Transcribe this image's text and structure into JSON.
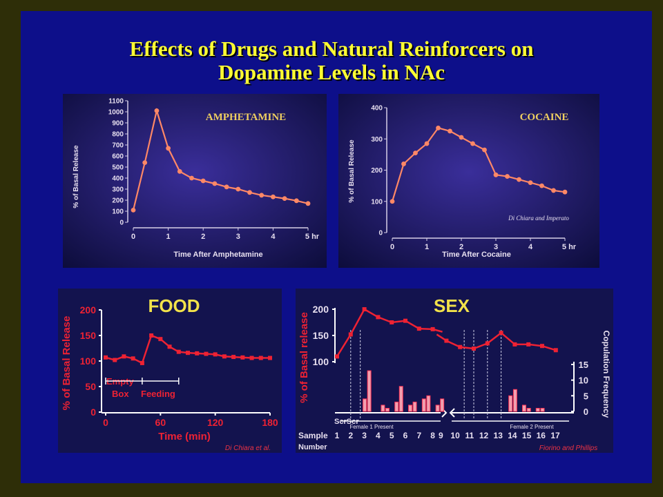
{
  "title": {
    "line1": "Effects of Drugs and Natural Reinforcers on",
    "line2": "Dopamine Levels in NAc"
  },
  "colors": {
    "slide_bg": "#0d0f8a",
    "title": "#ffff33",
    "panel_bg": "#12124f",
    "line": "#ff8866",
    "food_line": "#ee2233"
  },
  "chart_data": [
    {
      "type": "line",
      "title": "AMPHETAMINE",
      "xlabel": "Time After Amphetamine",
      "ylabel": "% of Basal Release",
      "x_ticks": [
        "0",
        "1",
        "2",
        "3",
        "4",
        "5 hr"
      ],
      "y_ticks": [
        "0",
        "100",
        "200",
        "300",
        "400",
        "500",
        "600",
        "700",
        "800",
        "900",
        "1000",
        "1100"
      ],
      "xlim": [
        0,
        5
      ],
      "ylim": [
        0,
        1100
      ],
      "series": [
        {
          "x": [
            0,
            0.33,
            0.67,
            1.0,
            1.33,
            1.67,
            2.0,
            2.33,
            2.67,
            3.0,
            3.33,
            3.67,
            4.0,
            4.33,
            4.67,
            5.0
          ],
          "y": [
            110,
            540,
            1010,
            670,
            460,
            400,
            375,
            350,
            320,
            300,
            270,
            245,
            230,
            215,
            195,
            170
          ]
        }
      ]
    },
    {
      "type": "line",
      "title": "COCAINE",
      "xlabel": "Time After Cocaine",
      "ylabel": "% of Basal Release",
      "annotation": "Di Chiara and Imperato",
      "x_ticks": [
        "0",
        "1",
        "2",
        "3",
        "4",
        "5 hr"
      ],
      "y_ticks": [
        "0",
        "100",
        "200",
        "300",
        "400"
      ],
      "xlim": [
        0,
        5
      ],
      "ylim": [
        0,
        400
      ],
      "series": [
        {
          "x": [
            0,
            0.33,
            0.67,
            1.0,
            1.33,
            1.67,
            2.0,
            2.33,
            2.67,
            3.0,
            3.33,
            3.67,
            4.0,
            4.33,
            4.67,
            5.0
          ],
          "y": [
            100,
            220,
            255,
            285,
            335,
            325,
            305,
            285,
            265,
            185,
            180,
            170,
            160,
            150,
            135,
            130
          ]
        }
      ]
    },
    {
      "type": "line",
      "title": "FOOD",
      "xlabel": "Time (min)",
      "ylabel": "% of Basal Release",
      "annotation": "Di Chiara et al.",
      "x_ticks": [
        "0",
        "60",
        "120",
        "180"
      ],
      "y_ticks": [
        "0",
        "50",
        "100",
        "150",
        "200"
      ],
      "xlim": [
        0,
        180
      ],
      "ylim": [
        0,
        200
      ],
      "labels": {
        "empty": "Empty",
        "box": "Box",
        "feeding": "Feeding"
      },
      "series": [
        {
          "x": [
            0,
            10,
            20,
            30,
            40,
            50,
            60,
            70,
            80,
            90,
            100,
            110,
            120,
            130,
            140,
            150,
            160,
            170,
            180
          ],
          "y": [
            107,
            102,
            109,
            105,
            96,
            150,
            143,
            128,
            118,
            116,
            115,
            114,
            113,
            109,
            108,
            107,
            106,
            106,
            106
          ]
        }
      ]
    },
    {
      "type": "line",
      "title": "SEX",
      "ylabel": "% of Basal release",
      "y2label": "Copulation Frequency",
      "annotation": "Fiorino and Phillips",
      "sample_label": "Sample",
      "number_label": "Number",
      "scr_label": "ScrScr",
      "female1": "Female 1 Present",
      "female2": "Female 2 Present",
      "categories": [
        "1",
        "2",
        "3",
        "4",
        "5",
        "6",
        "7",
        "8",
        "9",
        "10",
        "11",
        "12",
        "13",
        "14",
        "15",
        "16",
        "17"
      ],
      "y_ticks": [
        "100",
        "150",
        "200"
      ],
      "y2_ticks": [
        "0",
        "5",
        "10",
        "15"
      ],
      "ylim": [
        100,
        200
      ],
      "y2lim": [
        0,
        15
      ],
      "series": [
        {
          "name": "Dopamine",
          "values": [
            110,
            152,
            200,
            185,
            175,
            178,
            163,
            162,
            140,
            128,
            125,
            135,
            155,
            133,
            133,
            130,
            122
          ]
        },
        {
          "name": "Copulation",
          "values": [
            0,
            0,
            3,
            0,
            1,
            3,
            0,
            3,
            0,
            0,
            0,
            0,
            0,
            6,
            1,
            1,
            0
          ]
        }
      ],
      "bars": [
        {
          "s": 3,
          "h": 4
        },
        {
          "s": 3.33,
          "h": 13
        },
        {
          "s": 4.33,
          "h": 2
        },
        {
          "s": 4.66,
          "h": 1
        },
        {
          "s": 5.33,
          "h": 3
        },
        {
          "s": 5.66,
          "h": 8
        },
        {
          "s": 6.33,
          "h": 2
        },
        {
          "s": 6.66,
          "h": 3
        },
        {
          "s": 7.33,
          "h": 4
        },
        {
          "s": 7.66,
          "h": 5
        },
        {
          "s": 8.33,
          "h": 2
        },
        {
          "s": 8.66,
          "h": 4
        },
        {
          "s": 13.66,
          "h": 5
        },
        {
          "s": 14,
          "h": 7
        },
        {
          "s": 14.66,
          "h": 2
        },
        {
          "s": 15,
          "h": 1
        },
        {
          "s": 15.66,
          "h": 1
        },
        {
          "s": 16,
          "h": 1
        }
      ]
    }
  ]
}
